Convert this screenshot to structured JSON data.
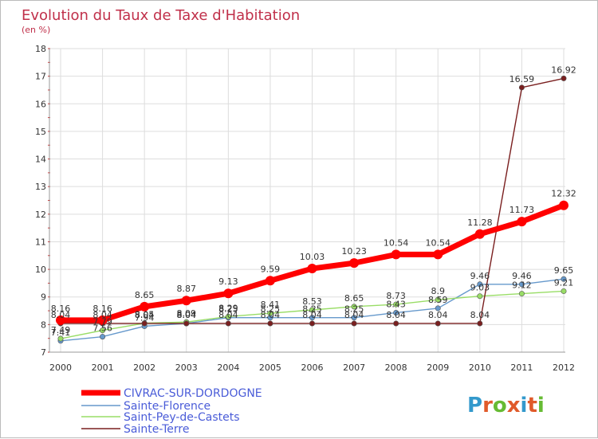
{
  "title": "Evolution du Taux de Taxe d'Habitation",
  "subtitle": "(en %)",
  "logo": {
    "text": "Proxiti",
    "letters": [
      "P",
      "r",
      "o",
      "x",
      "i",
      "t",
      "i"
    ]
  },
  "colors": {
    "title": "#c0304a",
    "grid": "#dddddd",
    "axis": "#999999",
    "legend_text": "#4a5cd8",
    "logo": [
      "#3399cc",
      "#e05a2a",
      "#66bb33",
      "#e05a2a",
      "#3399cc",
      "#e05a2a",
      "#66bb33"
    ]
  },
  "chart_data": {
    "type": "line",
    "x": [
      "2000",
      "2001",
      "2002",
      "2003",
      "2004",
      "2005",
      "2006",
      "2007",
      "2008",
      "2009",
      "2010",
      "2011",
      "2012"
    ],
    "ylim": [
      7,
      18
    ],
    "yticks": [
      "7",
      "8",
      "9",
      "10",
      "11",
      "12",
      "13",
      "14",
      "15",
      "16",
      "17",
      "18"
    ],
    "grid": true,
    "legend_position": "bottom-left",
    "series": [
      {
        "name": "CIVRAC-SUR-DORDOGNE",
        "color": "#ff0000",
        "values": [
          8.16,
          8.16,
          8.65,
          8.87,
          9.13,
          9.59,
          10.03,
          10.23,
          10.54,
          10.54,
          11.28,
          11.73,
          12.32
        ],
        "labels": [
          "8.16",
          "8.16",
          "8.65",
          "8.87",
          "9.13",
          "9.59",
          "10.03",
          "10.23",
          "10.54",
          "10.54",
          "11.28",
          "11.73",
          "12.32"
        ]
      },
      {
        "name": "Sainte-Florence",
        "color": "#6699cc",
        "values": [
          7.41,
          7.56,
          7.94,
          8.04,
          8.25,
          8.25,
          8.25,
          8.25,
          8.43,
          8.59,
          9.46,
          9.46,
          9.65
        ],
        "labels": [
          "7.41",
          "7.56",
          "7.94",
          "8.04",
          "8.25",
          "8.25",
          "8.25",
          "8.25",
          "8.43",
          "8.59",
          "9.46",
          "9.46",
          "9.65"
        ]
      },
      {
        "name": "Saint-Pey-de-Castets",
        "color": "#99dd66",
        "values": [
          7.49,
          7.79,
          8.05,
          8.09,
          8.29,
          8.41,
          8.53,
          8.65,
          8.73,
          8.9,
          9.03,
          9.12,
          9.21
        ],
        "labels": [
          "7.49",
          "7.79",
          "8.05",
          "8.09",
          "8.29",
          "8.41",
          "8.53",
          "8.65",
          "8.73",
          "8.9",
          "9.03",
          "9.12",
          "9.21"
        ]
      },
      {
        "name": "Sainte-Terre",
        "color": "#7a1f1f",
        "values": [
          8.04,
          8.04,
          8.04,
          8.04,
          8.04,
          8.04,
          8.04,
          8.04,
          8.04,
          8.04,
          8.04,
          16.59,
          16.92
        ],
        "labels": [
          "8.04",
          "8.04",
          "8.04",
          "8.04",
          "8.04",
          "8.04",
          "8.04",
          "8.04",
          "8.04",
          "8.04",
          "8.04",
          "16.59",
          "16.92"
        ]
      }
    ]
  }
}
